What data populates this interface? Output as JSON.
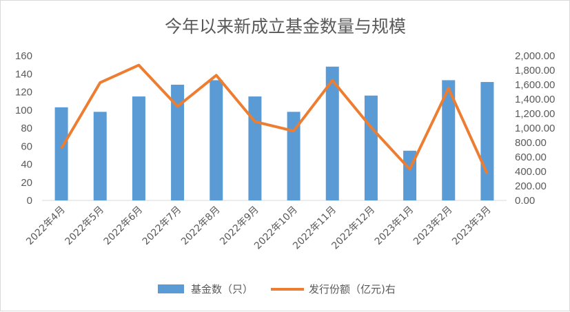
{
  "chart_data": {
    "type": "bar",
    "title": "今年以来新成立基金数量与规模",
    "categories": [
      "2022年4月",
      "2022年5月",
      "2022年6月",
      "2022年7月",
      "2022年8月",
      "2022年9月",
      "2022年10月",
      "2022年11月",
      "2022年12月",
      "2023年1月",
      "2023年2月",
      "2023年3月"
    ],
    "series": [
      {
        "name": "基金数（只）",
        "type": "bar",
        "axis": "left",
        "color": "#5b9bd5",
        "values": [
          103,
          98,
          115,
          128,
          133,
          115,
          98,
          148,
          116,
          55,
          133,
          131
        ]
      },
      {
        "name": "发行份额（亿元)右",
        "type": "line",
        "axis": "right",
        "color": "#ed7d31",
        "values": [
          720,
          1630,
          1870,
          1300,
          1730,
          1090,
          960,
          1660,
          1010,
          430,
          1550,
          370
        ]
      }
    ],
    "y_left": {
      "min": 0,
      "max": 160,
      "ticks": [
        "0",
        "20",
        "40",
        "60",
        "80",
        "100",
        "120",
        "140",
        "160"
      ]
    },
    "y_right": {
      "min": 0,
      "max": 2000,
      "ticks": [
        "0.00",
        "200.00",
        "400.00",
        "600.00",
        "800.00",
        "1,000.00",
        "1,200.00",
        "1,400.00",
        "1,600.00",
        "1,800.00",
        "2,000.00"
      ]
    },
    "grid": false,
    "legend_position": "bottom"
  }
}
